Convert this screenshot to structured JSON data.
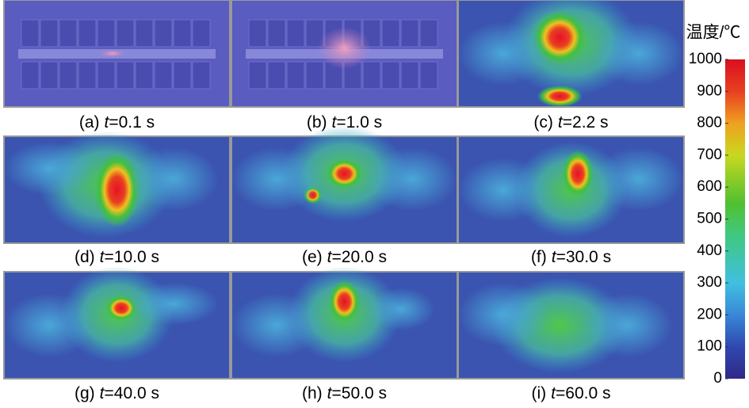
{
  "panels": [
    {
      "label": "(a)",
      "var": "t",
      "time": "=0.1 s"
    },
    {
      "label": "(b)",
      "var": "t",
      "time": "=1.0 s"
    },
    {
      "label": "(c)",
      "var": "t",
      "time": "=2.2 s"
    },
    {
      "label": "(d)",
      "var": "t",
      "time": "=10.0 s"
    },
    {
      "label": "(e)",
      "var": "t",
      "time": "=20.0 s"
    },
    {
      "label": "(f)",
      "var": "t",
      "time": "=30.0 s"
    },
    {
      "label": "(g)",
      "var": "t",
      "time": "=40.0 s"
    },
    {
      "label": "(h)",
      "var": "t",
      "time": "=50.0 s"
    },
    {
      "label": "(i)",
      "var": "t",
      "time": "=60.0 s"
    }
  ],
  "colorbar": {
    "title": "温度/℃",
    "lim": [
      0,
      1000
    ],
    "ticks": [
      0,
      100,
      200,
      300,
      400,
      500,
      600,
      700,
      800,
      900,
      1000
    ]
  }
}
